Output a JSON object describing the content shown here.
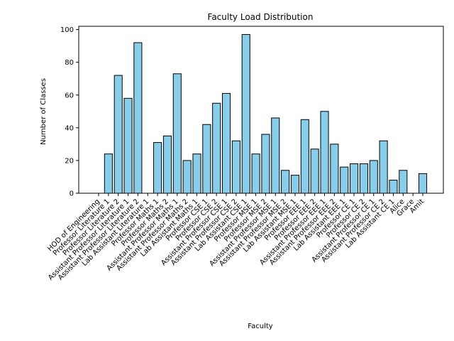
{
  "chart_data": {
    "type": "bar",
    "title": "Faculty Load Distribution",
    "xlabel": "Faculty",
    "ylabel": "Number of Classes",
    "ylim": [
      0,
      102
    ],
    "yticks": [
      0,
      20,
      40,
      60,
      80,
      100
    ],
    "grid": false,
    "bar_color": "#87CEEB",
    "edge_color": "#000000",
    "categories": [
      "HOD of Engineering",
      "Professor Literature 1",
      "Professor Literature 2",
      "Assistant Professor Literature 1",
      "Assistant Professor Literature 2",
      "Lab Assistant Literature 1",
      "Professor Maths 1",
      "Professor Maths 2",
      "Assistant Professor Maths 1",
      "Assistant Professor Maths 2",
      "Lab Assistant Maths 1",
      "Professor CSE 1",
      "Professor CSE 2",
      "Assistant Professor CSE 1",
      "Assistant Professor CSE 2",
      "Lab Assistant CSE 1",
      "Professor MSE 1",
      "Professor MSE 2",
      "Assistant Professor MSE 1",
      "Assistant Professor MSE 2",
      "Lab Assistant MSE 1",
      "Professor EEE 1",
      "Professor EEE 2",
      "Assistant Professor EEE 1",
      "Assistant Professor EEE 2",
      "Lab Assistant EEE 1",
      "Professor CE 1",
      "Professor CE 2",
      "Assistant Professor CE 1",
      "Assistant Professor CE 2",
      "Lab Assistant CE 1",
      "Alice",
      "Grace",
      "Amit"
    ],
    "values": [
      0,
      24,
      72,
      58,
      92,
      0,
      31,
      35,
      73,
      20,
      24,
      42,
      55,
      61,
      32,
      97,
      24,
      36,
      46,
      14,
      11,
      45,
      27,
      50,
      30,
      16,
      18,
      18,
      20,
      32,
      8,
      14,
      0,
      12
    ]
  }
}
